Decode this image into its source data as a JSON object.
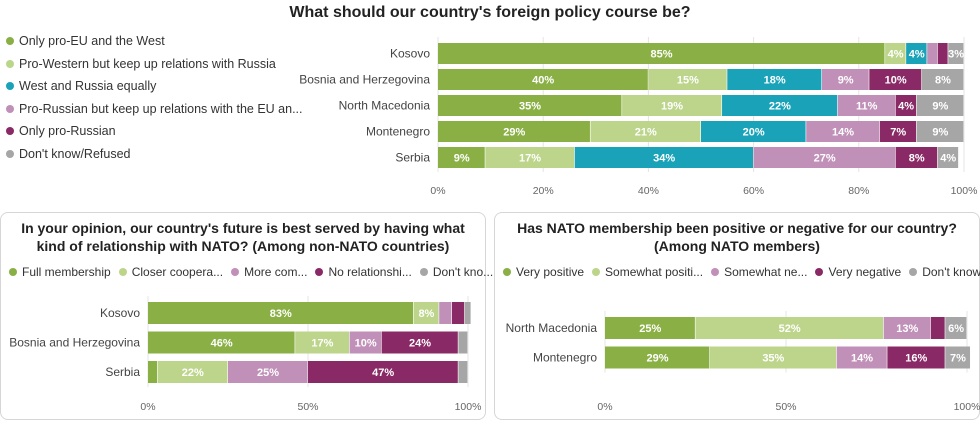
{
  "chart_data": [
    {
      "type": "bar",
      "orientation": "horizontal",
      "stacked": true,
      "title": "What should our country's foreign policy course be?",
      "categories": [
        "Kosovo",
        "Bosnia and Herzegovina",
        "North Macedonia",
        "Montenegro",
        "Serbia"
      ],
      "series": [
        {
          "name": "Only pro-EU and the West",
          "color": "#8ab045",
          "values": [
            85,
            40,
            35,
            29,
            9
          ]
        },
        {
          "name": "Pro-Western but keep up relations with Russia",
          "color": "#bcd58b",
          "values": [
            4,
            15,
            19,
            21,
            17
          ]
        },
        {
          "name": "West and Russia equally",
          "color": "#1aa3b8",
          "values": [
            4,
            18,
            22,
            20,
            34
          ]
        },
        {
          "name": "Pro-Russian but keep up relations with the EU an...",
          "color": "#c090b8",
          "values": [
            2,
            9,
            11,
            14,
            27
          ]
        },
        {
          "name": "Only pro-Russian",
          "color": "#892a66",
          "values": [
            2,
            10,
            4,
            7,
            8
          ]
        },
        {
          "name": "Don't know/Refused",
          "color": "#a6a6a6",
          "values": [
            3,
            8,
            9,
            9,
            4
          ]
        }
      ],
      "labels": [
        [
          "85%",
          "4%",
          "4%",
          "",
          "",
          "3%"
        ],
        [
          "40%",
          "15%",
          "18%",
          "9%",
          "10%",
          "8%"
        ],
        [
          "35%",
          "19%",
          "22%",
          "11%",
          "4%",
          "9%"
        ],
        [
          "29%",
          "21%",
          "20%",
          "14%",
          "7%",
          "9%"
        ],
        [
          "9%",
          "17%",
          "34%",
          "27%",
          "8%",
          "4%"
        ]
      ],
      "xlim": [
        0,
        100
      ],
      "ticks": [
        "0%",
        "20%",
        "40%",
        "60%",
        "80%",
        "100%"
      ],
      "legend": "left"
    },
    {
      "type": "bar",
      "orientation": "horizontal",
      "stacked": true,
      "title": "In your opinion, our country's future is best served by having what kind of relationship with NATO? (Among non-NATO countries)",
      "categories": [
        "Kosovo",
        "Bosnia and Herzegovina",
        "Serbia"
      ],
      "series": [
        {
          "name": "Full membership",
          "color": "#8ab045",
          "values": [
            83,
            46,
            3
          ]
        },
        {
          "name": "Closer coopera...",
          "color": "#bcd58b",
          "values": [
            8,
            17,
            22
          ]
        },
        {
          "name": "More com...",
          "color": "#c090b8",
          "values": [
            4,
            10,
            25
          ]
        },
        {
          "name": "No relationshi...",
          "color": "#892a66",
          "values": [
            4,
            24,
            47
          ]
        },
        {
          "name": "Don't kno...",
          "color": "#a6a6a6",
          "values": [
            2,
            3,
            3
          ]
        }
      ],
      "labels": [
        [
          "83%",
          "8%",
          "",
          "",
          ""
        ],
        [
          "46%",
          "17%",
          "10%",
          "24%",
          ""
        ],
        [
          "",
          "22%",
          "25%",
          "47%",
          ""
        ]
      ],
      "xlim": [
        0,
        100
      ],
      "ticks": [
        "0%",
        "50%",
        "100%"
      ],
      "legend": "top"
    },
    {
      "type": "bar",
      "orientation": "horizontal",
      "stacked": true,
      "title": "Has NATO membership been positive or negative for our country? (Among NATO members)",
      "categories": [
        "North Macedonia",
        "Montenegro"
      ],
      "series": [
        {
          "name": "Very positive",
          "color": "#8ab045",
          "values": [
            25,
            29
          ]
        },
        {
          "name": "Somewhat positi...",
          "color": "#bcd58b",
          "values": [
            52,
            35
          ]
        },
        {
          "name": "Somewhat ne...",
          "color": "#c090b8",
          "values": [
            13,
            14
          ]
        },
        {
          "name": "Very negative",
          "color": "#892a66",
          "values": [
            4,
            16
          ]
        },
        {
          "name": "Don't know...",
          "color": "#a6a6a6",
          "values": [
            6,
            7
          ]
        }
      ],
      "labels": [
        [
          "25%",
          "52%",
          "13%",
          "",
          "6%"
        ],
        [
          "29%",
          "35%",
          "14%",
          "16%",
          "7%"
        ]
      ],
      "xlim": [
        0,
        100
      ],
      "ticks": [
        "0%",
        "50%",
        "100%"
      ],
      "legend": "top"
    }
  ]
}
